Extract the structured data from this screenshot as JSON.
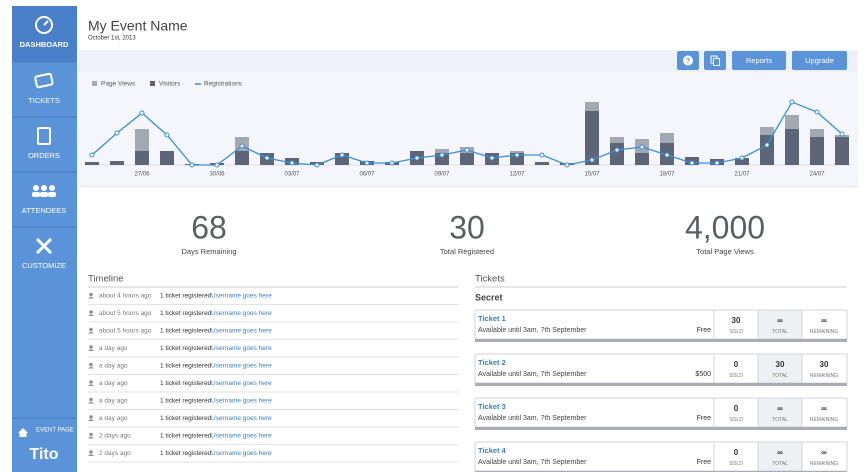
{
  "sidebar": {
    "nav": [
      "DASHBOARD",
      "TICKETS",
      "ORDERS",
      "ATTENDEES",
      "CUSTOMIZE"
    ],
    "event_page": "EVENT PAGE",
    "logo": "Tito"
  },
  "header": {
    "title": "My Event Name",
    "date": "October 1st, 2013"
  },
  "toolbar": {
    "help": "?",
    "buttons": [
      "Reports",
      "Upgrade"
    ]
  },
  "chart": {
    "type": "bar",
    "categories": [
      null,
      null,
      "27/06",
      null,
      null,
      "30/06",
      null,
      null,
      "03/07",
      null,
      null,
      "06/07",
      null,
      null,
      "09/07",
      null,
      null,
      "12/07",
      null,
      null,
      "15/07",
      null,
      null,
      "18/07",
      null,
      null,
      "21/07",
      null,
      null,
      "24/07",
      null
    ],
    "ylim": [
      0,
      70
    ],
    "series": [
      {
        "name": "Page Views",
        "color": "#a3a9b3",
        "values": [
          3,
          4,
          36,
          14,
          1,
          2,
          28,
          12,
          7,
          3,
          12,
          4,
          3,
          14,
          16,
          18,
          12,
          14,
          3,
          2,
          63,
          28,
          26,
          32,
          8,
          6,
          7,
          38,
          50,
          36,
          30
        ]
      },
      {
        "name": "Visitors",
        "color": "#5d6678",
        "values": [
          3,
          4,
          14,
          14,
          1,
          2,
          14,
          12,
          7,
          3,
          12,
          4,
          3,
          14,
          12,
          12,
          12,
          12,
          3,
          2,
          54,
          22,
          12,
          22,
          8,
          6,
          7,
          30,
          36,
          28,
          28
        ]
      },
      {
        "name": "Registrations",
        "type": "line",
        "color": "#3b8ed8",
        "values": [
          10,
          32,
          52,
          30,
          0,
          0,
          19,
          7,
          2,
          0,
          10,
          2,
          2,
          7,
          10,
          15,
          7,
          10,
          10,
          0,
          5,
          15,
          18,
          10,
          2,
          2,
          7,
          20,
          63,
          53,
          31
        ]
      }
    ]
  },
  "stats": [
    {
      "value": "68",
      "label": "Days Remaining"
    },
    {
      "value": "30",
      "label": "Total Registered"
    },
    {
      "value": "4,000",
      "label": "Total Page Views"
    }
  ],
  "timeline": {
    "title": "Timeline",
    "entries": [
      {
        "time": "about 4 hours ago",
        "text": "1 ticket registered",
        "user": "Username goes here"
      },
      {
        "time": "about 5 hours ago",
        "text": "1 ticket registered",
        "user": "Username goes here"
      },
      {
        "time": "about 5 hours ago",
        "text": "1 ticket registered",
        "user": "Username goes here"
      },
      {
        "time": "a day ago",
        "text": "1 ticket registered",
        "user": "Username goes here"
      },
      {
        "time": "a day ago",
        "text": "1 ticket registered",
        "user": "Username goes here"
      },
      {
        "time": "a day ago",
        "text": "1 ticket registered",
        "user": "Username goes here"
      },
      {
        "time": "a day ago",
        "text": "1 ticket registered",
        "user": "Username goes here"
      },
      {
        "time": "a day ago",
        "text": "1 ticket registered",
        "user": "Username goes here"
      },
      {
        "time": "2 days ago",
        "text": "1 ticket registered",
        "user": "Username goes here"
      },
      {
        "time": "2 days ago",
        "text": "1 ticket registered",
        "user": "Username goes here"
      }
    ]
  },
  "tickets": {
    "title": "Tickets",
    "group": "Secret",
    "columns": [
      "SOLD",
      "TOTAL",
      "REMAINING"
    ],
    "items": [
      {
        "name": "Ticket 1",
        "availability": "Available until 3am, 7th September",
        "price": "Free",
        "sold": "30",
        "total": "∞",
        "remaining": "∞"
      },
      {
        "name": "Ticket 2",
        "availability": "Available until 3am, 7th September",
        "price": "$500",
        "sold": "0",
        "total": "30",
        "remaining": "30"
      },
      {
        "name": "Ticket 3",
        "availability": "Available until 3am, 7th September",
        "price": "Free",
        "sold": "0",
        "total": "∞",
        "remaining": "∞"
      },
      {
        "name": "Ticket 4",
        "availability": "Available until 3am, 7th September",
        "price": "Free",
        "sold": "0",
        "total": "∞",
        "remaining": "∞"
      }
    ]
  }
}
